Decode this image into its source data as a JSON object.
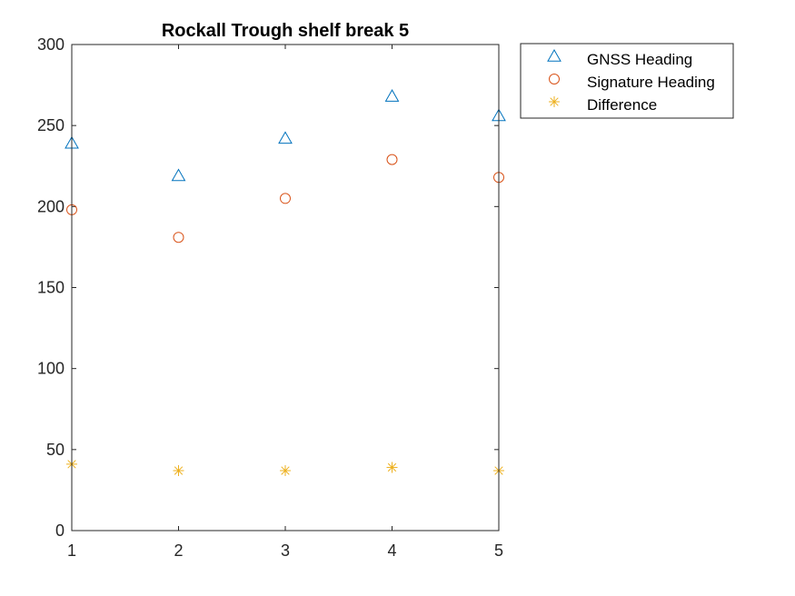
{
  "chart_data": {
    "type": "scatter",
    "title": "Rockall Trough shelf break 5",
    "xlabel": "",
    "ylabel": "",
    "xlim": [
      1,
      5
    ],
    "ylim": [
      0,
      300
    ],
    "xticks": [
      1,
      2,
      3,
      4,
      5
    ],
    "yticks": [
      0,
      50,
      100,
      150,
      200,
      250,
      300
    ],
    "grid": false,
    "legend_position": "outside-top-right",
    "x": [
      1,
      2,
      3,
      4,
      5
    ],
    "series": [
      {
        "name": "GNSS Heading",
        "marker": "triangle",
        "color": "#0072BD",
        "values": [
          239,
          219,
          242,
          268,
          256
        ]
      },
      {
        "name": "Signature Heading",
        "marker": "circle",
        "color": "#D95319",
        "values": [
          198,
          181,
          205,
          229,
          218
        ]
      },
      {
        "name": "Difference",
        "marker": "asterisk",
        "color": "#EDB120",
        "values": [
          41,
          37,
          37,
          39,
          37
        ]
      }
    ]
  }
}
